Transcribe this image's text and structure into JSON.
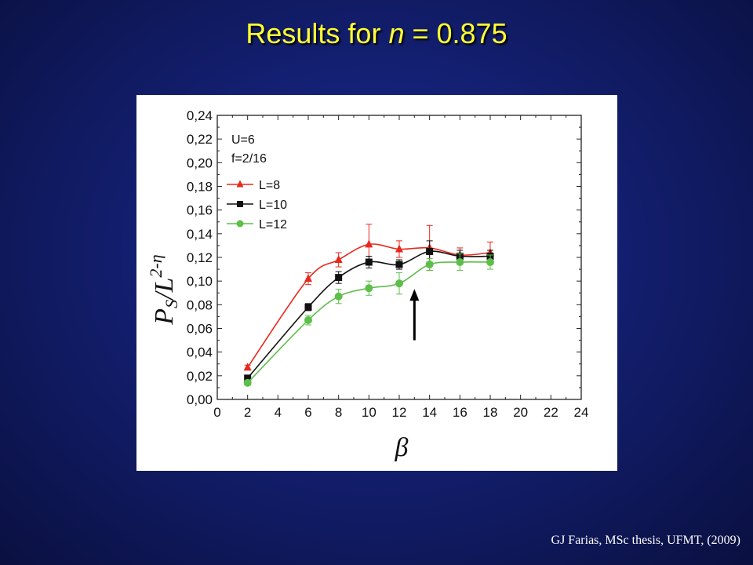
{
  "title": {
    "prefix": "Results for ",
    "variable": "n",
    "suffix": " = 0.875"
  },
  "citation": "GJ Farias, MSc thesis, UFMT, (2009)",
  "chart_data": {
    "type": "line",
    "xlabel": "β",
    "ylabel": {
      "main": "P",
      "sub": "S",
      "mid": "/L",
      "sup": "2-η"
    },
    "xlim": [
      0,
      24
    ],
    "ylim": [
      0,
      0.24
    ],
    "xticks": [
      0,
      2,
      4,
      6,
      8,
      10,
      12,
      14,
      16,
      18,
      20,
      22,
      24
    ],
    "yticks": [
      0,
      0.02,
      0.04,
      0.06,
      0.08,
      0.1,
      0.12,
      0.14,
      0.16,
      0.18,
      0.2,
      0.22,
      0.24
    ],
    "ytick_labels": [
      "0,00",
      "0,02",
      "0,04",
      "0,06",
      "0,08",
      "0,10",
      "0,12",
      "0,14",
      "0,16",
      "0,18",
      "0,20",
      "0,22",
      "0,24"
    ],
    "annotations": [
      "U=6",
      "f=2/16"
    ],
    "legend_position": "top-left",
    "arrow": {
      "x": 13,
      "y_from": 0.05,
      "y_to": 0.092
    },
    "series": [
      {
        "name": "L=8",
        "color": "#e8281e",
        "marker": "triangle",
        "x": [
          2,
          6,
          8,
          10,
          12,
          14,
          16,
          18
        ],
        "y": [
          0.027,
          0.102,
          0.118,
          0.131,
          0.127,
          0.128,
          0.122,
          0.124
        ],
        "err": [
          0.002,
          0.005,
          0.006,
          0.017,
          0.007,
          0.019,
          0.006,
          0.009
        ]
      },
      {
        "name": "L=10",
        "color": "#111111",
        "marker": "square",
        "x": [
          2,
          6,
          8,
          10,
          12,
          14,
          16,
          18
        ],
        "y": [
          0.018,
          0.078,
          0.103,
          0.116,
          0.114,
          0.125,
          0.121,
          0.121
        ],
        "err": [
          0.002,
          0.003,
          0.005,
          0.005,
          0.004,
          0.009,
          0.005,
          0.005
        ]
      },
      {
        "name": "L=12",
        "color": "#5dbf4a",
        "marker": "circle",
        "x": [
          2,
          6,
          8,
          10,
          12,
          14,
          16,
          18
        ],
        "y": [
          0.014,
          0.067,
          0.087,
          0.094,
          0.098,
          0.114,
          0.116,
          0.116
        ],
        "err": [
          0.002,
          0.004,
          0.006,
          0.006,
          0.009,
          0.005,
          0.007,
          0.006
        ]
      }
    ]
  }
}
